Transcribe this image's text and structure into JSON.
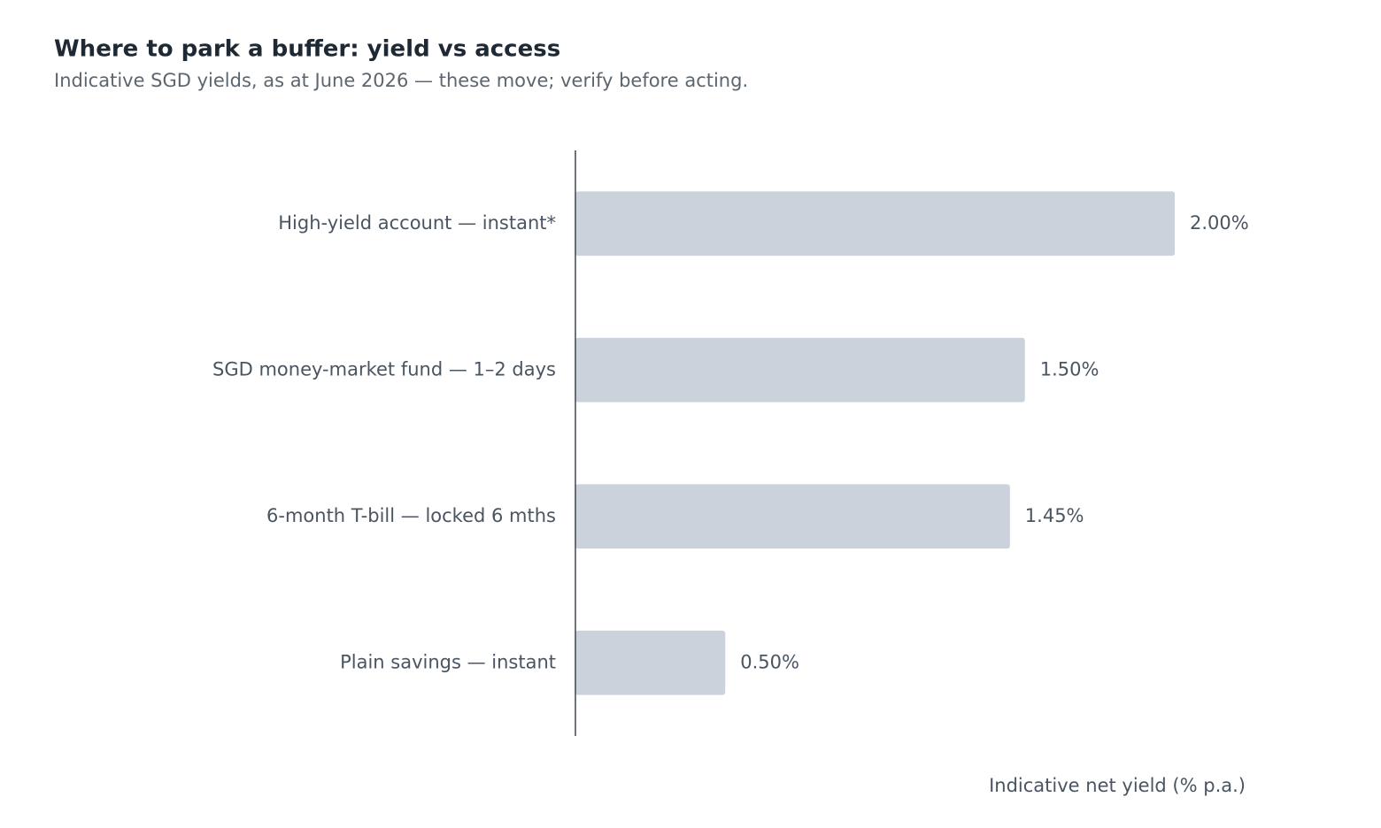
{
  "chart_data": {
    "type": "bar",
    "orientation": "horizontal",
    "title": "Where to park a buffer: yield vs access",
    "subtitle": "Indicative SGD yields, as at June 2026 — these move; verify before acting.",
    "x_label": "Indicative net yield (% p.a.)",
    "categories": [
      "High-yield account — instant*",
      "SGD money-market fund — 1–2 days",
      "6-month T-bill — locked 6 mths",
      "Plain savings — instant"
    ],
    "values": [
      2.0,
      1.5,
      1.45,
      0.5
    ],
    "value_labels": [
      "2.00%",
      "1.50%",
      "1.45%",
      "0.50%"
    ],
    "color": "#cbd2db",
    "xlim": [
      0,
      2.25
    ]
  }
}
